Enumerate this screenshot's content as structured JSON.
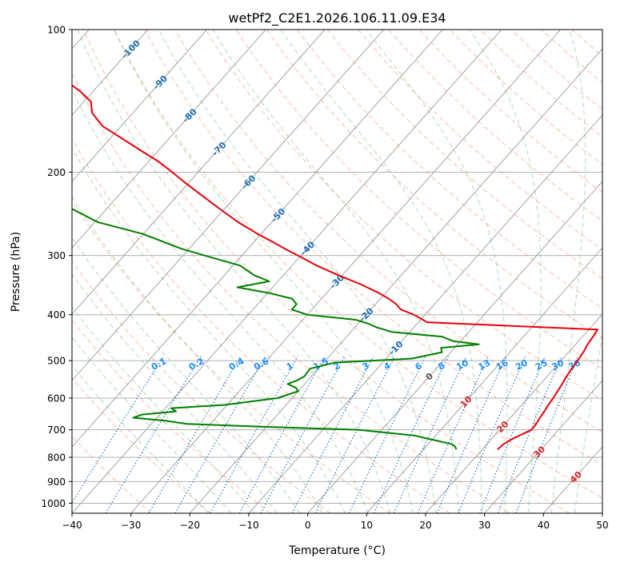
{
  "chart_data": {
    "type": "line",
    "diagram": "skew-T log-P",
    "title": "wetPf2_C2E1.2026.106.11.09.E34",
    "xlabel": "Temperature (°C)",
    "ylabel": "Pressure (hPa)",
    "xlim": [
      -40,
      50
    ],
    "ylim": [
      1050,
      100
    ],
    "x_ticks": [
      -40,
      -30,
      -20,
      -10,
      0,
      10,
      20,
      30,
      40,
      50
    ],
    "x_tick_labels": [
      "−40",
      "−30",
      "−20",
      "−10",
      "0",
      "10",
      "20",
      "30",
      "40",
      "50"
    ],
    "y_ticks": [
      100,
      200,
      300,
      400,
      500,
      600,
      700,
      800,
      900,
      1000
    ],
    "y_tick_labels": [
      "100",
      "200",
      "300",
      "400",
      "500",
      "600",
      "700",
      "800",
      "900",
      "1000"
    ],
    "grid": true,
    "colors": {
      "temperature": "#e8000b",
      "dewpoint": "#008000",
      "isotherm": "#999999",
      "dry_adiabat": "#ff8c6a",
      "moist_adiabat": "#52b052",
      "mixing_ratio": "#1f77d4",
      "isotherm_label": "#1f6fb4",
      "dry_adiabat_label": "#d62728",
      "mixing_label": "#1e90ff"
    },
    "isotherm_labels": [
      {
        "value": -100,
        "label": "-100"
      },
      {
        "value": -90,
        "label": "-90"
      },
      {
        "value": -80,
        "label": "-80"
      },
      {
        "value": -70,
        "label": "-70"
      },
      {
        "value": -60,
        "label": "-60"
      },
      {
        "value": -50,
        "label": "-50"
      },
      {
        "value": -40,
        "label": "-40"
      },
      {
        "value": -30,
        "label": "-30"
      },
      {
        "value": -20,
        "label": "-20"
      },
      {
        "value": -10,
        "label": "-10"
      },
      {
        "value": 0,
        "label": "0"
      },
      {
        "value": 10,
        "label": "10"
      },
      {
        "value": 20,
        "label": "20"
      },
      {
        "value": 30,
        "label": "30"
      },
      {
        "value": 40,
        "label": "40"
      }
    ],
    "mixing_ratio_lines": [
      {
        "value": 0.1,
        "label": "0.1"
      },
      {
        "value": 0.2,
        "label": "0.2"
      },
      {
        "value": 0.4,
        "label": "0.4"
      },
      {
        "value": 0.6,
        "label": "0.6"
      },
      {
        "value": 1,
        "label": "1"
      },
      {
        "value": 1.5,
        "label": "1.5"
      },
      {
        "value": 2,
        "label": "2"
      },
      {
        "value": 3,
        "label": "3"
      },
      {
        "value": 4,
        "label": "4"
      },
      {
        "value": 6,
        "label": "6"
      },
      {
        "value": 8,
        "label": "8"
      },
      {
        "value": 10,
        "label": "10"
      },
      {
        "value": 13,
        "label": "13"
      },
      {
        "value": 16,
        "label": "16"
      },
      {
        "value": 20,
        "label": "20"
      },
      {
        "value": 25,
        "label": "25"
      },
      {
        "value": 30,
        "label": "30"
      },
      {
        "value": 36,
        "label": "36"
      }
    ],
    "series": [
      {
        "name": "Temperature",
        "pressure": [
          770,
          750,
          730,
          700,
          680,
          660,
          640,
          620,
          600,
          580,
          560,
          540,
          520,
          500,
          480,
          460,
          445,
          430,
          415,
          400,
          390,
          380,
          370,
          360,
          345,
          330,
          315,
          300,
          290,
          280,
          270,
          255,
          240,
          225,
          210,
          200,
          190,
          180,
          170,
          160,
          150,
          142,
          135,
          128,
          122,
          117,
          112,
          108,
          104,
          100
        ],
        "temperature": [
          22.6,
          22.8,
          23.6,
          25.4,
          25.3,
          25.0,
          24.8,
          24.5,
          24.3,
          24.0,
          23.7,
          23.3,
          23.0,
          22.8,
          22.5,
          22.0,
          21.8,
          21.5,
          -8.5,
          -11.9,
          -14.9,
          -16.5,
          -18.6,
          -21.1,
          -25.5,
          -30.7,
          -35.8,
          -40.5,
          -43.8,
          -47.1,
          -50.6,
          -55.7,
          -60.5,
          -65.5,
          -70.8,
          -74.4,
          -78.3,
          -83.0,
          -87.9,
          -93.1,
          -96.9,
          -98.8,
          -102.2,
          -106.4,
          -109.1,
          -111.0,
          -113.5,
          -115.4,
          -117.8,
          -120.5
        ]
      },
      {
        "name": "Dewpoint",
        "pressure": [
          770,
          760,
          750,
          740,
          720,
          700,
          690,
          680,
          670,
          660,
          650,
          640,
          630,
          620,
          600,
          580,
          570,
          560,
          550,
          540,
          520,
          505,
          495,
          480,
          470,
          462,
          455,
          445,
          435,
          425,
          418,
          410,
          400,
          390,
          380,
          370,
          360,
          350,
          340,
          330,
          315,
          300,
          290,
          270,
          255,
          240,
          225,
          210,
          200,
          190,
          180,
          170,
          160,
          150,
          142,
          135,
          128,
          122,
          117,
          112,
          108,
          104,
          100
        ],
        "temperature": [
          15.6,
          15.0,
          14.0,
          11.5,
          6.5,
          -4.0,
          -20.0,
          -34.0,
          -38.0,
          -44.0,
          -43.0,
          -37.7,
          -39.0,
          -30.5,
          -22.5,
          -20.0,
          -21.0,
          -22.9,
          -21.8,
          -21.2,
          -21.4,
          -18.2,
          -5.6,
          -1.5,
          -2.3,
          3.6,
          -1.2,
          -3.8,
          -13.0,
          -16.4,
          -18.2,
          -21.0,
          -30.0,
          -33.4,
          -33.4,
          -35.0,
          -39.7,
          -46.0,
          -41.5,
          -45.0,
          -48.8,
          -56.3,
          -61.4,
          -70.1,
          -79.5,
          -85.5,
          -91.5,
          -95.7,
          -97.8,
          -102.4,
          -105.5,
          -109.2,
          -115.3,
          -121.6,
          -126.3,
          -130.7,
          -133.7,
          -134.2,
          -133.7,
          -135.4,
          -135.2,
          -135.5,
          -136.1
        ]
      }
    ]
  }
}
